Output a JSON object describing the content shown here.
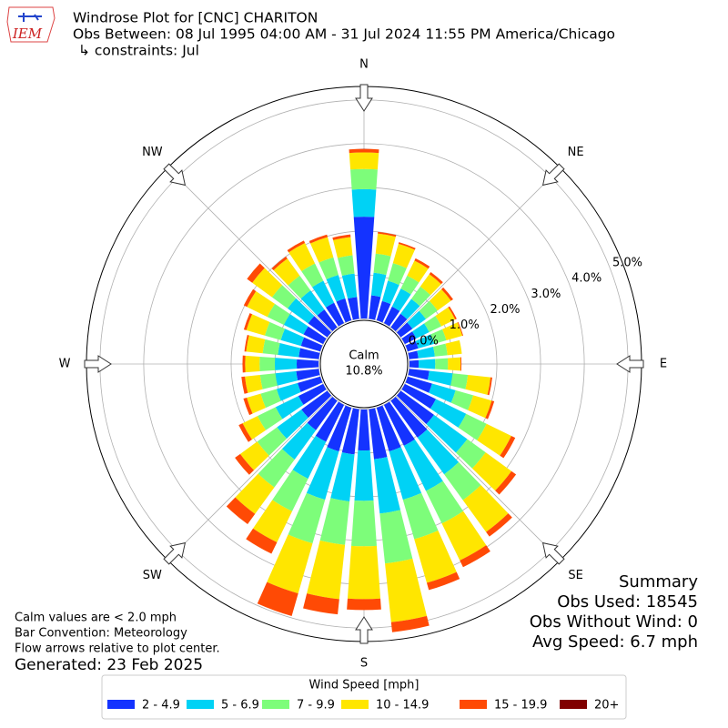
{
  "logo_text": "IEM",
  "chart_data": {
    "type": "windrose",
    "title": "Windrose Plot for [CNC] CHARITON",
    "subtitle": "Obs Between: 08 Jul 1995 04:00 AM - 31 Jul 2024 11:55 PM America/Chicago",
    "constraints": "↳ constraints: Jul",
    "x": [
      0,
      10,
      20,
      30,
      40,
      50,
      60,
      70,
      80,
      90,
      100,
      110,
      120,
      130,
      140,
      150,
      160,
      170,
      180,
      190,
      200,
      210,
      220,
      230,
      240,
      250,
      260,
      270,
      280,
      290,
      300,
      310,
      320,
      330,
      340,
      350
    ],
    "xticks": [
      {
        "value": 0,
        "label": "N"
      },
      {
        "value": 45,
        "label": "NE"
      },
      {
        "value": 90,
        "label": "E"
      },
      {
        "value": 135,
        "label": "SE"
      },
      {
        "value": 180,
        "label": "S"
      },
      {
        "value": 225,
        "label": "SW"
      },
      {
        "value": 270,
        "label": "W"
      },
      {
        "value": 315,
        "label": "NW"
      }
    ],
    "ylim": [
      0,
      5.31
    ],
    "yticks": [
      {
        "value": 0,
        "label": "0.0%"
      },
      {
        "value": 1,
        "label": "1.0%"
      },
      {
        "value": 2,
        "label": "2.0%"
      },
      {
        "value": 3,
        "label": "3.0%"
      },
      {
        "value": 4,
        "label": "4.0%"
      },
      {
        "value": 5,
        "label": "5.0%"
      }
    ],
    "grid": true,
    "calm": {
      "label": "Calm",
      "value": 10.8,
      "value_label": "10.8%"
    },
    "legend_title": "Wind Speed [mph]",
    "series": [
      {
        "name": "2 - 4.9",
        "color": "#1433ff",
        "values": [
          2.33,
          0.54,
          0.46,
          0.42,
          0.38,
          0.33,
          0.29,
          0.25,
          0.21,
          0.21,
          0.46,
          0.58,
          0.79,
          0.94,
          1.04,
          1.04,
          1.04,
          1.15,
          0.94,
          1.04,
          1.04,
          0.94,
          0.83,
          0.73,
          0.63,
          0.54,
          0.52,
          0.5,
          0.46,
          0.46,
          0.5,
          0.54,
          0.5,
          0.52,
          0.52,
          0.5
        ]
      },
      {
        "name": "5 - 6.9",
        "color": "#00d2f5",
        "values": [
          0.63,
          0.52,
          0.48,
          0.46,
          0.42,
          0.38,
          0.33,
          0.38,
          0.38,
          0.38,
          0.54,
          0.56,
          0.77,
          0.94,
          1.04,
          1.15,
          1.15,
          1.25,
          1.15,
          1.08,
          1.15,
          0.94,
          0.83,
          0.69,
          0.58,
          0.5,
          0.48,
          0.5,
          0.48,
          0.48,
          0.5,
          0.58,
          0.54,
          0.56,
          0.56,
          0.54
        ]
      },
      {
        "name": "7 - 9.9",
        "color": "#7dfd7a",
        "values": [
          0.46,
          0.44,
          0.42,
          0.33,
          0.35,
          0.33,
          0.31,
          0.29,
          0.29,
          0.29,
          0.35,
          0.42,
          0.52,
          0.52,
          0.73,
          0.83,
          0.94,
          1.15,
          1.04,
          1.0,
          1.04,
          0.83,
          0.79,
          0.56,
          0.46,
          0.38,
          0.35,
          0.35,
          0.35,
          0.38,
          0.42,
          0.44,
          0.42,
          0.44,
          0.42,
          0.42
        ]
      },
      {
        "name": "10 - 14.9",
        "color": "#ffe600",
        "values": [
          0.38,
          0.46,
          0.46,
          0.38,
          0.35,
          0.38,
          0.35,
          0.38,
          0.33,
          0.29,
          0.52,
          0.44,
          0.63,
          0.73,
          0.9,
          0.94,
          1.04,
          1.35,
          1.21,
          1.25,
          1.19,
          0.79,
          0.75,
          0.48,
          0.38,
          0.33,
          0.35,
          0.33,
          0.38,
          0.44,
          0.52,
          0.56,
          0.48,
          0.52,
          0.48,
          0.42
        ]
      },
      {
        "name": "15 - 19.9",
        "color": "#ff4a05",
        "values": [
          0.08,
          0.04,
          0.04,
          0.06,
          0.06,
          0.06,
          0.04,
          0.02,
          0,
          0.02,
          0.04,
          0.06,
          0.1,
          0.13,
          0.13,
          0.17,
          0.17,
          0.23,
          0.25,
          0.35,
          0.54,
          0.29,
          0.29,
          0.15,
          0.1,
          0.08,
          0.08,
          0.06,
          0.04,
          0.06,
          0.08,
          0.15,
          0.06,
          0.06,
          0.06,
          0.06
        ]
      },
      {
        "name": "20+",
        "color": "#800000",
        "values": [
          0,
          0,
          0,
          0,
          0,
          0,
          0,
          0,
          0,
          0,
          0,
          0,
          0,
          0,
          0,
          0,
          0,
          0,
          0,
          0,
          0,
          0,
          0,
          0,
          0,
          0,
          0,
          0,
          0,
          0,
          0,
          0,
          0,
          0,
          0,
          0
        ]
      }
    ],
    "notes": [
      "Calm values are < 2.0 mph",
      "Bar Convention: Meteorology",
      "Flow arrows relative to plot center."
    ],
    "generated": "Generated: 23 Feb 2025",
    "summary": [
      "Summary",
      "Obs Used: 18545",
      "Obs Without Wind: 0",
      "Avg Speed: 6.7 mph"
    ]
  }
}
